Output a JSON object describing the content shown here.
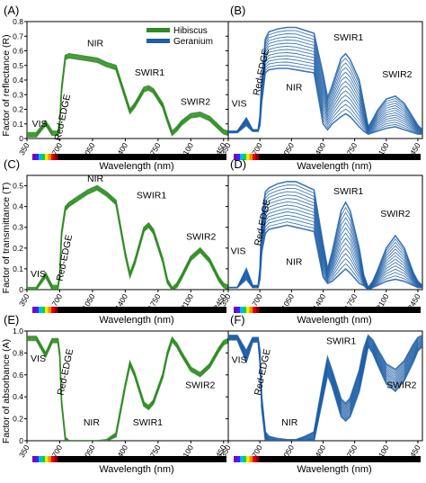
{
  "figure": {
    "xlabel": "Wavelength (nm)",
    "x_ticks": [
      "350",
      "700",
      "1050",
      "1400",
      "1750",
      "2100",
      "2450"
    ],
    "y_ticks": [
      "0",
      "0.1",
      "0.2",
      "0.3",
      "0.4",
      "0.5",
      "0.6",
      "0.7",
      "0.8"
    ],
    "y_ticks_absorbance": [
      "0",
      "0.2",
      "0.4",
      "0.6",
      "0.8",
      "1.0"
    ],
    "colors": {
      "hibiscus": "#2e8b22",
      "geranium": "#1f5fa6",
      "axis": "#000000"
    },
    "legend": {
      "placement": "top-right of panel A"
    }
  },
  "chart_data": [
    {
      "type": "line",
      "panel": "(A)",
      "ylabel": "Factor of reflectance (R)",
      "ylim": [
        0,
        0.8
      ],
      "xlim": [
        350,
        2500
      ],
      "series": [
        {
          "name": "Hibiscus",
          "color": "#2e8b22"
        }
      ],
      "x": [
        350,
        450,
        550,
        620,
        680,
        700,
        720,
        760,
        800,
        900,
        1000,
        1100,
        1200,
        1300,
        1400,
        1450,
        1500,
        1600,
        1650,
        1700,
        1800,
        1850,
        1900,
        1950,
        2000,
        2100,
        2200,
        2300,
        2400,
        2450,
        2500
      ],
      "values": [
        0.04,
        0.04,
        0.12,
        0.05,
        0.05,
        0.12,
        0.35,
        0.57,
        0.58,
        0.57,
        0.56,
        0.55,
        0.52,
        0.5,
        0.3,
        0.2,
        0.24,
        0.35,
        0.36,
        0.34,
        0.24,
        0.14,
        0.05,
        0.08,
        0.12,
        0.17,
        0.18,
        0.15,
        0.09,
        0.06,
        0.05
      ],
      "annotations": [
        "VIS",
        "Red-EDGE",
        "NIR",
        "SWIR1",
        "SWIR2"
      ],
      "legend": [
        "Hibiscus",
        "Geranium"
      ]
    },
    {
      "type": "line",
      "panel": "(B)",
      "ylim": [
        0,
        0.8
      ],
      "xlim": [
        350,
        2500
      ],
      "series": [
        {
          "name": "Geranium",
          "color": "#1f5fa6"
        }
      ],
      "x": [
        350,
        450,
        550,
        620,
        680,
        700,
        720,
        760,
        800,
        900,
        1000,
        1100,
        1200,
        1300,
        1400,
        1450,
        1500,
        1600,
        1650,
        1700,
        1800,
        1850,
        1900,
        1950,
        2000,
        2100,
        2200,
        2300,
        2400,
        2450,
        2500
      ],
      "values": [
        0.05,
        0.05,
        0.14,
        0.06,
        0.06,
        0.15,
        0.4,
        0.68,
        0.73,
        0.75,
        0.76,
        0.76,
        0.74,
        0.72,
        0.44,
        0.28,
        0.36,
        0.55,
        0.58,
        0.54,
        0.4,
        0.24,
        0.08,
        0.13,
        0.19,
        0.27,
        0.29,
        0.24,
        0.14,
        0.09,
        0.06
      ],
      "values_low": [
        0.04,
        0.04,
        0.09,
        0.05,
        0.05,
        0.09,
        0.25,
        0.45,
        0.47,
        0.48,
        0.48,
        0.47,
        0.46,
        0.45,
        0.1,
        0.06,
        0.1,
        0.15,
        0.17,
        0.15,
        0.08,
        0.05,
        0.03,
        0.04,
        0.05,
        0.07,
        0.08,
        0.06,
        0.04,
        0.03,
        0.03
      ],
      "annotations": [
        "VIS",
        "Red-EDGE",
        "NIR",
        "SWIR1",
        "SWIR2"
      ]
    },
    {
      "type": "line",
      "panel": "(C)",
      "ylabel": "Factor of transmittance (T)",
      "ylim": [
        0,
        0.55
      ],
      "xlim": [
        350,
        2500
      ],
      "series": [
        {
          "name": "Hibiscus",
          "color": "#2e8b22"
        }
      ],
      "x": [
        350,
        450,
        550,
        620,
        680,
        700,
        720,
        760,
        800,
        900,
        1000,
        1100,
        1200,
        1300,
        1400,
        1450,
        1500,
        1600,
        1650,
        1700,
        1800,
        1850,
        1900,
        1950,
        2000,
        2100,
        2200,
        2300,
        2400,
        2450,
        2500
      ],
      "values": [
        0.01,
        0.01,
        0.08,
        0.02,
        0.02,
        0.08,
        0.28,
        0.4,
        0.42,
        0.45,
        0.48,
        0.5,
        0.47,
        0.43,
        0.18,
        0.08,
        0.14,
        0.3,
        0.32,
        0.29,
        0.15,
        0.05,
        0.01,
        0.03,
        0.07,
        0.16,
        0.2,
        0.15,
        0.06,
        0.03,
        0.02
      ],
      "annotations": [
        "VIS",
        "Red-EDGE",
        "NIR",
        "SWIR1",
        "SWIR2"
      ]
    },
    {
      "type": "line",
      "panel": "(D)",
      "ylim": [
        0,
        0.55
      ],
      "xlim": [
        350,
        2500
      ],
      "series": [
        {
          "name": "Geranium",
          "color": "#1f5fa6"
        }
      ],
      "x": [
        350,
        450,
        550,
        620,
        680,
        700,
        720,
        760,
        800,
        900,
        1000,
        1100,
        1200,
        1300,
        1400,
        1450,
        1500,
        1600,
        1650,
        1700,
        1800,
        1850,
        1900,
        1950,
        2000,
        2100,
        2200,
        2300,
        2400,
        2450,
        2500
      ],
      "values": [
        0.01,
        0.01,
        0.1,
        0.02,
        0.02,
        0.1,
        0.33,
        0.47,
        0.49,
        0.51,
        0.52,
        0.52,
        0.5,
        0.48,
        0.22,
        0.1,
        0.18,
        0.38,
        0.42,
        0.38,
        0.2,
        0.07,
        0.01,
        0.04,
        0.09,
        0.2,
        0.26,
        0.2,
        0.08,
        0.04,
        0.02
      ],
      "values_low": [
        0.01,
        0.01,
        0.05,
        0.01,
        0.01,
        0.05,
        0.18,
        0.27,
        0.29,
        0.3,
        0.31,
        0.3,
        0.29,
        0.28,
        0.06,
        0.03,
        0.04,
        0.08,
        0.1,
        0.08,
        0.03,
        0.02,
        0.0,
        0.01,
        0.02,
        0.04,
        0.05,
        0.04,
        0.02,
        0.01,
        0.01
      ],
      "annotations": [
        "VIS",
        "Red-EDGE",
        "NIR",
        "SWIR1",
        "SWIR2"
      ]
    },
    {
      "type": "line",
      "panel": "(E)",
      "ylabel": "Factor of absorbance (A)",
      "ylim": [
        0,
        1.0
      ],
      "xlim": [
        350,
        2500
      ],
      "series": [
        {
          "name": "Hibiscus",
          "color": "#2e8b22"
        }
      ],
      "x": [
        350,
        450,
        550,
        620,
        680,
        700,
        720,
        760,
        800,
        900,
        1000,
        1100,
        1200,
        1300,
        1400,
        1450,
        1500,
        1600,
        1650,
        1700,
        1800,
        1850,
        1900,
        1950,
        2000,
        2100,
        2200,
        2300,
        2400,
        2450,
        2500
      ],
      "values": [
        0.95,
        0.95,
        0.8,
        0.93,
        0.93,
        0.8,
        0.37,
        0.03,
        0.0,
        -0.02,
        -0.04,
        -0.05,
        0.01,
        0.07,
        0.52,
        0.72,
        0.62,
        0.35,
        0.32,
        0.37,
        0.61,
        0.81,
        0.94,
        0.89,
        0.81,
        0.67,
        0.62,
        0.7,
        0.85,
        0.91,
        0.93
      ],
      "annotations": [
        "VIS",
        "Red-EDGE",
        "NIR",
        "SWIR1",
        "SWIR2"
      ]
    },
    {
      "type": "line",
      "panel": "(F)",
      "ylim": [
        0,
        1.0
      ],
      "xlim": [
        350,
        2500
      ],
      "series": [
        {
          "name": "Geranium",
          "color": "#1f5fa6"
        }
      ],
      "x": [
        350,
        450,
        550,
        620,
        680,
        700,
        720,
        760,
        800,
        900,
        1000,
        1100,
        1200,
        1300,
        1400,
        1450,
        1500,
        1600,
        1650,
        1700,
        1800,
        1850,
        1900,
        1950,
        2000,
        2100,
        2200,
        2300,
        2400,
        2450,
        2500
      ],
      "values": [
        0.96,
        0.96,
        0.82,
        0.94,
        0.94,
        0.82,
        0.4,
        0.08,
        0.04,
        0.02,
        0.01,
        0.01,
        0.04,
        0.08,
        0.55,
        0.76,
        0.64,
        0.38,
        0.34,
        0.39,
        0.64,
        0.84,
        0.96,
        0.92,
        0.84,
        0.7,
        0.65,
        0.73,
        0.88,
        0.94,
        0.96
      ],
      "values_low": [
        0.92,
        0.92,
        0.72,
        0.9,
        0.9,
        0.72,
        0.3,
        0.01,
        -0.03,
        -0.05,
        -0.06,
        -0.06,
        -0.03,
        0.0,
        0.4,
        0.6,
        0.5,
        0.22,
        0.18,
        0.22,
        0.45,
        0.65,
        0.86,
        0.8,
        0.7,
        0.52,
        0.45,
        0.55,
        0.72,
        0.82,
        0.86
      ],
      "annotations": [
        "VIS",
        "Red-EDGE",
        "NIR",
        "SWIR1",
        "SWIR2"
      ]
    }
  ]
}
